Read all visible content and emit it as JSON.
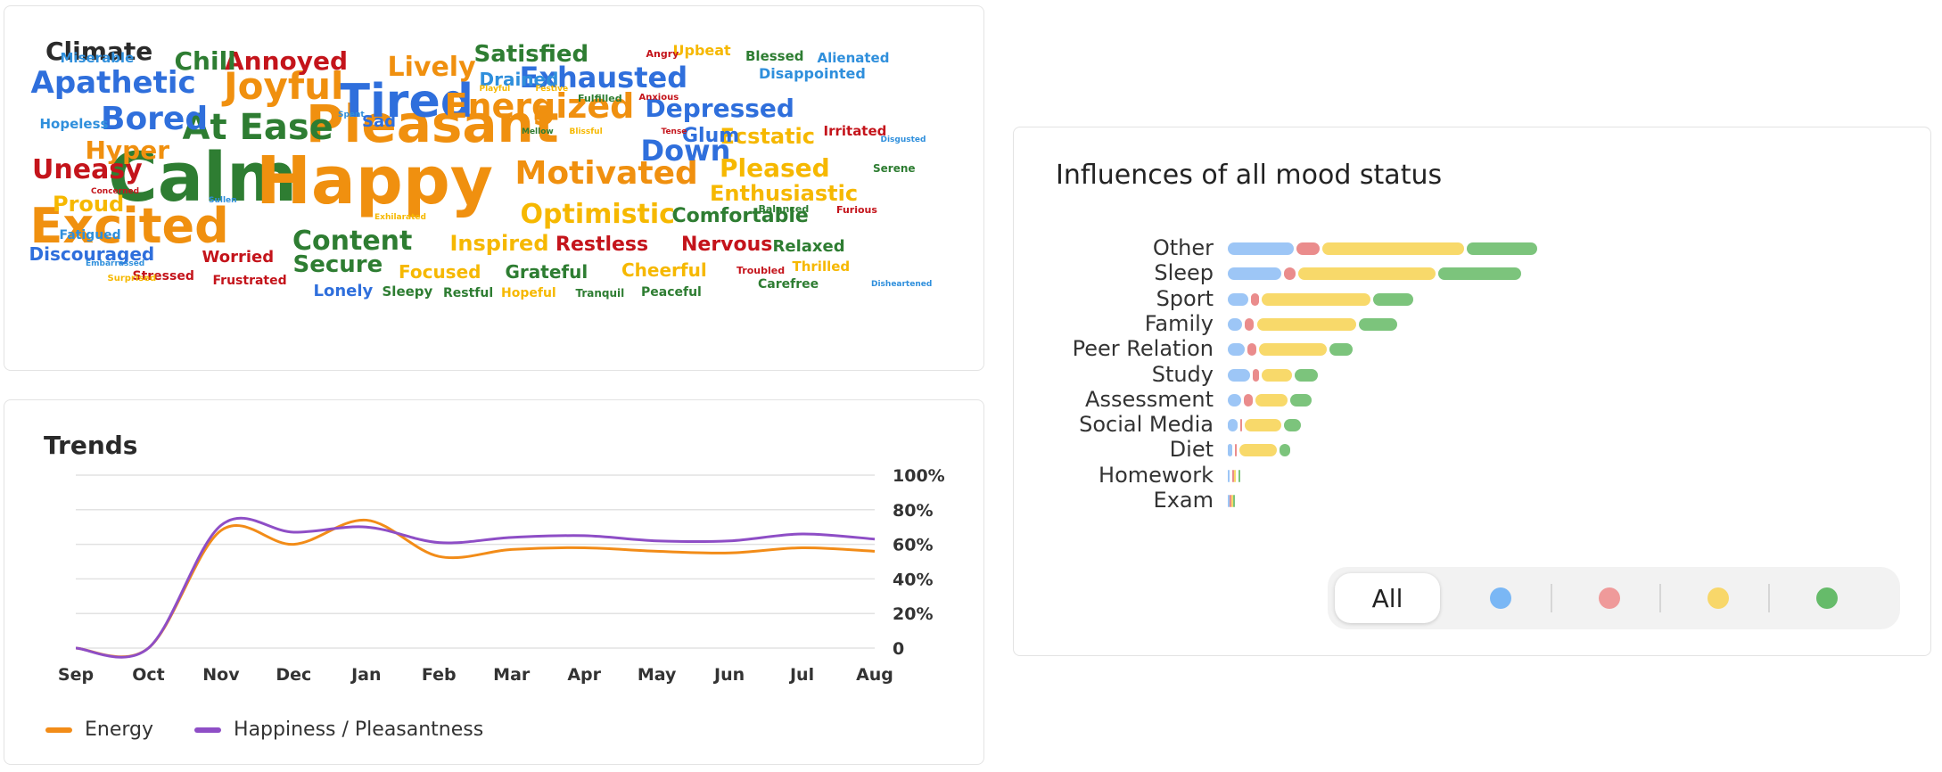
{
  "climate": {
    "title": "Climate",
    "words": [
      {
        "text": "Calm",
        "size": 76,
        "color": "#2e7d32"
      },
      {
        "text": "Happy",
        "size": 74,
        "color": "#f0900f"
      },
      {
        "text": "Pleasant",
        "size": 58,
        "color": "#f0900f"
      },
      {
        "text": "Excited",
        "size": 54,
        "color": "#f0900f"
      },
      {
        "text": "Tired",
        "size": 52,
        "color": "#2f6fdc"
      },
      {
        "text": "At Ease",
        "size": 40,
        "color": "#2e7d32"
      },
      {
        "text": "Joyful",
        "size": 42,
        "color": "#f0900f"
      },
      {
        "text": "Energized",
        "size": 38,
        "color": "#f0900f"
      },
      {
        "text": "Motivated",
        "size": 36,
        "color": "#f0900f"
      },
      {
        "text": "Apathetic",
        "size": 34,
        "color": "#2f6fdc"
      },
      {
        "text": "Bored",
        "size": 36,
        "color": "#2f6fdc"
      },
      {
        "text": "Exhausted",
        "size": 32,
        "color": "#2f6fdc"
      },
      {
        "text": "Uneasy",
        "size": 30,
        "color": "#c4141b"
      },
      {
        "text": "Down",
        "size": 32,
        "color": "#2f6fdc"
      },
      {
        "text": "Depressed",
        "size": 28,
        "color": "#2f6fdc"
      },
      {
        "text": "Annoyed",
        "size": 28,
        "color": "#c4141b"
      },
      {
        "text": "Lively",
        "size": 30,
        "color": "#f0900f"
      },
      {
        "text": "Optimistic",
        "size": 30,
        "color": "#f6b800"
      },
      {
        "text": "Content",
        "size": 30,
        "color": "#2e7d32"
      },
      {
        "text": "Pleased",
        "size": 28,
        "color": "#f6b800"
      },
      {
        "text": "Hyper",
        "size": 28,
        "color": "#f0900f"
      },
      {
        "text": "Satisfied",
        "size": 26,
        "color": "#2e7d32"
      },
      {
        "text": "Chill",
        "size": 28,
        "color": "#2e7d32"
      },
      {
        "text": "Proud",
        "size": 24,
        "color": "#f6b800"
      },
      {
        "text": "Secure",
        "size": 26,
        "color": "#2e7d32"
      },
      {
        "text": "Enthusiastic",
        "size": 24,
        "color": "#f6b800"
      },
      {
        "text": "Ecstatic",
        "size": 24,
        "color": "#f6b800"
      },
      {
        "text": "Inspired",
        "size": 24,
        "color": "#f6b800"
      },
      {
        "text": "Restless",
        "size": 22,
        "color": "#c4141b"
      },
      {
        "text": "Nervous",
        "size": 22,
        "color": "#c4141b"
      },
      {
        "text": "Comfortable",
        "size": 22,
        "color": "#2e7d32"
      },
      {
        "text": "Glum",
        "size": 22,
        "color": "#2f6fdc"
      },
      {
        "text": "Drained",
        "size": 20,
        "color": "#2f8fdc"
      },
      {
        "text": "Discouraged",
        "size": 20,
        "color": "#2f6fdc"
      },
      {
        "text": "Grateful",
        "size": 20,
        "color": "#2e7d32"
      },
      {
        "text": "Cheerful",
        "size": 20,
        "color": "#f6b800"
      },
      {
        "text": "Focused",
        "size": 20,
        "color": "#f6b800"
      },
      {
        "text": "Relaxed",
        "size": 18,
        "color": "#2e7d32"
      },
      {
        "text": "Worried",
        "size": 18,
        "color": "#c4141b"
      },
      {
        "text": "Sad",
        "size": 18,
        "color": "#2f6fdc"
      },
      {
        "text": "Lonely",
        "size": 18,
        "color": "#2f6fdc"
      },
      {
        "text": "Upbeat",
        "size": 16,
        "color": "#f6b800"
      },
      {
        "text": "Miserable",
        "size": 15,
        "color": "#2f8fdc"
      },
      {
        "text": "Blessed",
        "size": 15,
        "color": "#2e7d32"
      },
      {
        "text": "Alienated",
        "size": 15,
        "color": "#2f8fdc"
      },
      {
        "text": "Disappointed",
        "size": 16,
        "color": "#2f8fdc"
      },
      {
        "text": "Irritated",
        "size": 15,
        "color": "#c4141b"
      },
      {
        "text": "Hopeless",
        "size": 15,
        "color": "#2f8fdc"
      },
      {
        "text": "Serene",
        "size": 12,
        "color": "#2e7d32"
      },
      {
        "text": "Fatigued",
        "size": 14,
        "color": "#2f8fdc"
      },
      {
        "text": "Sleepy",
        "size": 15,
        "color": "#2e7d32"
      },
      {
        "text": "Thrilled",
        "size": 15,
        "color": "#f6b800"
      },
      {
        "text": "Frustrated",
        "size": 14,
        "color": "#c4141b"
      },
      {
        "text": "Stressed",
        "size": 14,
        "color": "#c4141b"
      },
      {
        "text": "Hopeful",
        "size": 14,
        "color": "#f6b800"
      },
      {
        "text": "Peaceful",
        "size": 14,
        "color": "#2e7d32"
      },
      {
        "text": "Restful",
        "size": 14,
        "color": "#2e7d32"
      },
      {
        "text": "Tranquil",
        "size": 12,
        "color": "#2e7d32"
      },
      {
        "text": "Carefree",
        "size": 14,
        "color": "#2e7d32"
      },
      {
        "text": "Troubled",
        "size": 11,
        "color": "#c4141b"
      },
      {
        "text": "Furious",
        "size": 11,
        "color": "#c4141b"
      },
      {
        "text": "Balanced",
        "size": 11,
        "color": "#2e7d32"
      },
      {
        "text": "Angry",
        "size": 11,
        "color": "#c4141b"
      },
      {
        "text": "Fulfilled",
        "size": 11,
        "color": "#2e7d32"
      },
      {
        "text": "Anxious",
        "size": 10,
        "color": "#c4141b"
      },
      {
        "text": "Playful",
        "size": 9,
        "color": "#f6b800"
      },
      {
        "text": "Festive",
        "size": 9,
        "color": "#f6b800"
      },
      {
        "text": "Blissful",
        "size": 9,
        "color": "#f6b800"
      },
      {
        "text": "Mellow",
        "size": 9,
        "color": "#2e7d32"
      },
      {
        "text": "Spent",
        "size": 9,
        "color": "#2f8fdc"
      },
      {
        "text": "Tense",
        "size": 9,
        "color": "#c4141b"
      },
      {
        "text": "Disgusted",
        "size": 9,
        "color": "#2f8fdc"
      },
      {
        "text": "Sullen",
        "size": 9,
        "color": "#2f8fdc"
      },
      {
        "text": "Concerned",
        "size": 9,
        "color": "#c4141b"
      },
      {
        "text": "Exhilarated",
        "size": 9,
        "color": "#f6b800"
      },
      {
        "text": "Embarrassed",
        "size": 9,
        "color": "#2f8fdc"
      },
      {
        "text": "Surprised",
        "size": 10,
        "color": "#f6b800"
      },
      {
        "text": "Disheartened",
        "size": 9,
        "color": "#2f8fdc"
      }
    ]
  },
  "trends": {
    "title": "Trends",
    "chart_data": {
      "type": "line",
      "x": [
        "Sep",
        "Oct",
        "Nov",
        "Dec",
        "Jan",
        "Feb",
        "Mar",
        "Apr",
        "May",
        "Jun",
        "Jul",
        "Aug"
      ],
      "ylim": [
        0,
        100
      ],
      "yticks": [
        "100%",
        "80%",
        "60%",
        "40%",
        "20%",
        "0"
      ],
      "grid": true,
      "legend": "bottom-left",
      "series": [
        {
          "name": "Energy",
          "color": "#f28c18",
          "values": [
            0,
            0,
            68,
            60,
            74,
            53,
            57,
            58,
            56,
            55,
            58,
            56
          ]
        },
        {
          "name": "Happiness / Pleasantness",
          "color": "#8e4ec6",
          "values": [
            0,
            0,
            71,
            67,
            70,
            61,
            64,
            65,
            62,
            62,
            66,
            63
          ]
        }
      ]
    }
  },
  "influences": {
    "title": "Influences of all mood status",
    "colors": {
      "blue": "#9dc6f6",
      "red": "#ea8c8c",
      "yellow": "#f8d96a",
      "green": "#7cc47c"
    },
    "chart_data": {
      "type": "bar",
      "orientation": "horizontal",
      "stacked": true,
      "categories": [
        "Other",
        "Sleep",
        "Sport",
        "Family",
        "Peer Relation",
        "Study",
        "Assessment",
        "Social Media",
        "Diet",
        "Homework",
        "Exam"
      ],
      "series": [
        {
          "color": "blue",
          "values": [
            70,
            57,
            22,
            15,
            18,
            24,
            14,
            10,
            5,
            2,
            0.5
          ]
        },
        {
          "color": "red",
          "values": [
            24,
            12,
            8,
            10,
            9,
            6,
            10,
            2,
            2,
            1,
            0.3
          ]
        },
        {
          "color": "yellow",
          "values": [
            150,
            145,
            115,
            105,
            72,
            32,
            34,
            39,
            39,
            2,
            0.5
          ]
        },
        {
          "color": "green",
          "values": [
            75,
            88,
            43,
            41,
            25,
            25,
            22,
            18,
            12,
            2,
            0.3
          ]
        }
      ]
    },
    "filter": {
      "all_label": "All",
      "dots": [
        "#7ab7f5",
        "#ef9a9a",
        "#f8d76a",
        "#66bb6a"
      ]
    }
  }
}
